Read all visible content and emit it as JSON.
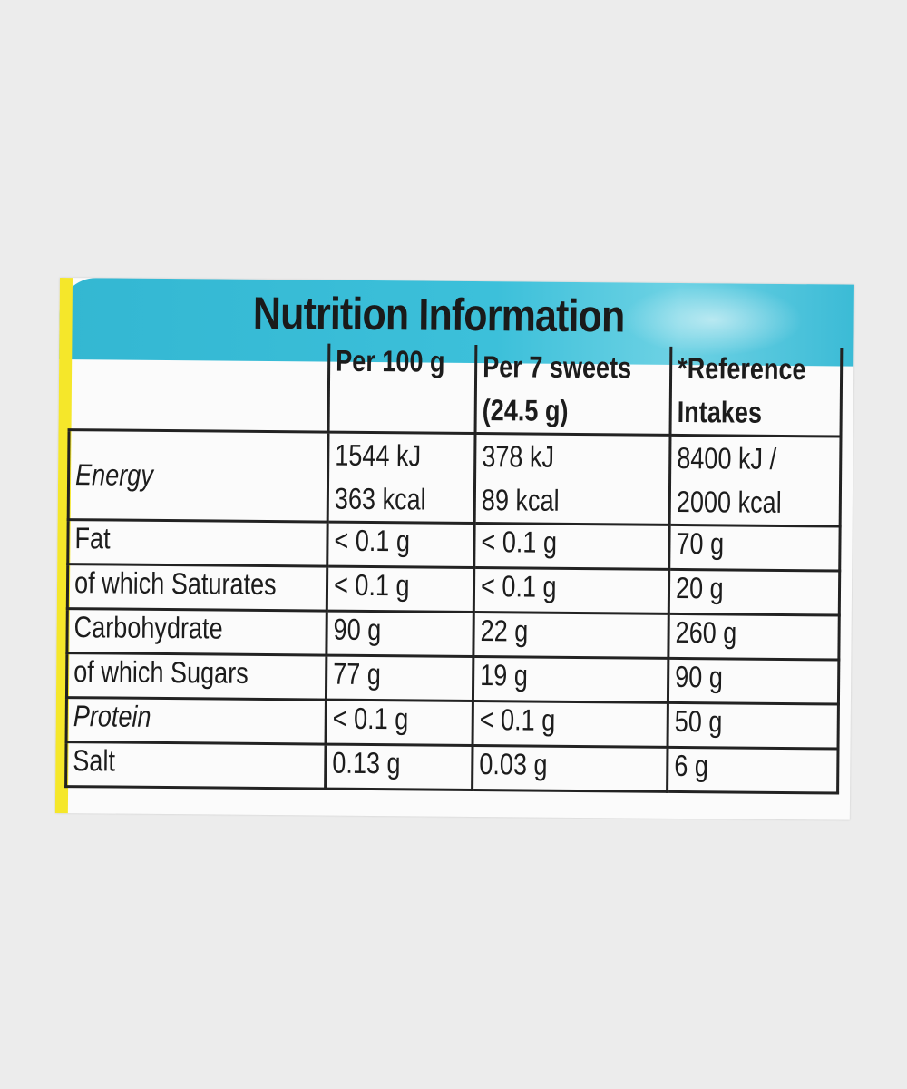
{
  "title": "Nutrition Information",
  "columns": {
    "per_100g": "Per 100 g",
    "per_serving": [
      "Per 7 sweets",
      "(24.5 g)"
    ],
    "reference": [
      "*Reference",
      "Intakes"
    ]
  },
  "energy": {
    "label": "Energy",
    "per_100g": [
      "1544 kJ",
      "363 kcal"
    ],
    "per_serving": [
      "378 kJ",
      "89 kcal"
    ],
    "reference": [
      "8400 kJ /",
      "2000 kcal"
    ]
  },
  "rows": [
    {
      "label": "Fat",
      "per_100g": "< 0.1 g",
      "per_serving": "< 0.1 g",
      "reference": "70 g"
    },
    {
      "label": "of which Saturates",
      "per_100g": "< 0.1 g",
      "per_serving": "< 0.1 g",
      "reference": "20 g"
    },
    {
      "label": "Carbohydrate",
      "per_100g": "90 g",
      "per_serving": "22 g",
      "reference": "260 g"
    },
    {
      "label": "of which Sugars",
      "per_100g": "77 g",
      "per_serving": "19 g",
      "reference": "90 g"
    },
    {
      "label": "Protein",
      "per_100g": "< 0.1 g",
      "per_serving": "< 0.1 g",
      "reference": "50 g"
    },
    {
      "label": "Salt",
      "per_100g": "0.13 g",
      "per_serving": "0.03 g",
      "reference": "6 g"
    }
  ],
  "colors": {
    "header_band": "#3cc0da",
    "edge": "#f5e72a",
    "ink": "#1c1c1c",
    "background": "#ececec"
  }
}
